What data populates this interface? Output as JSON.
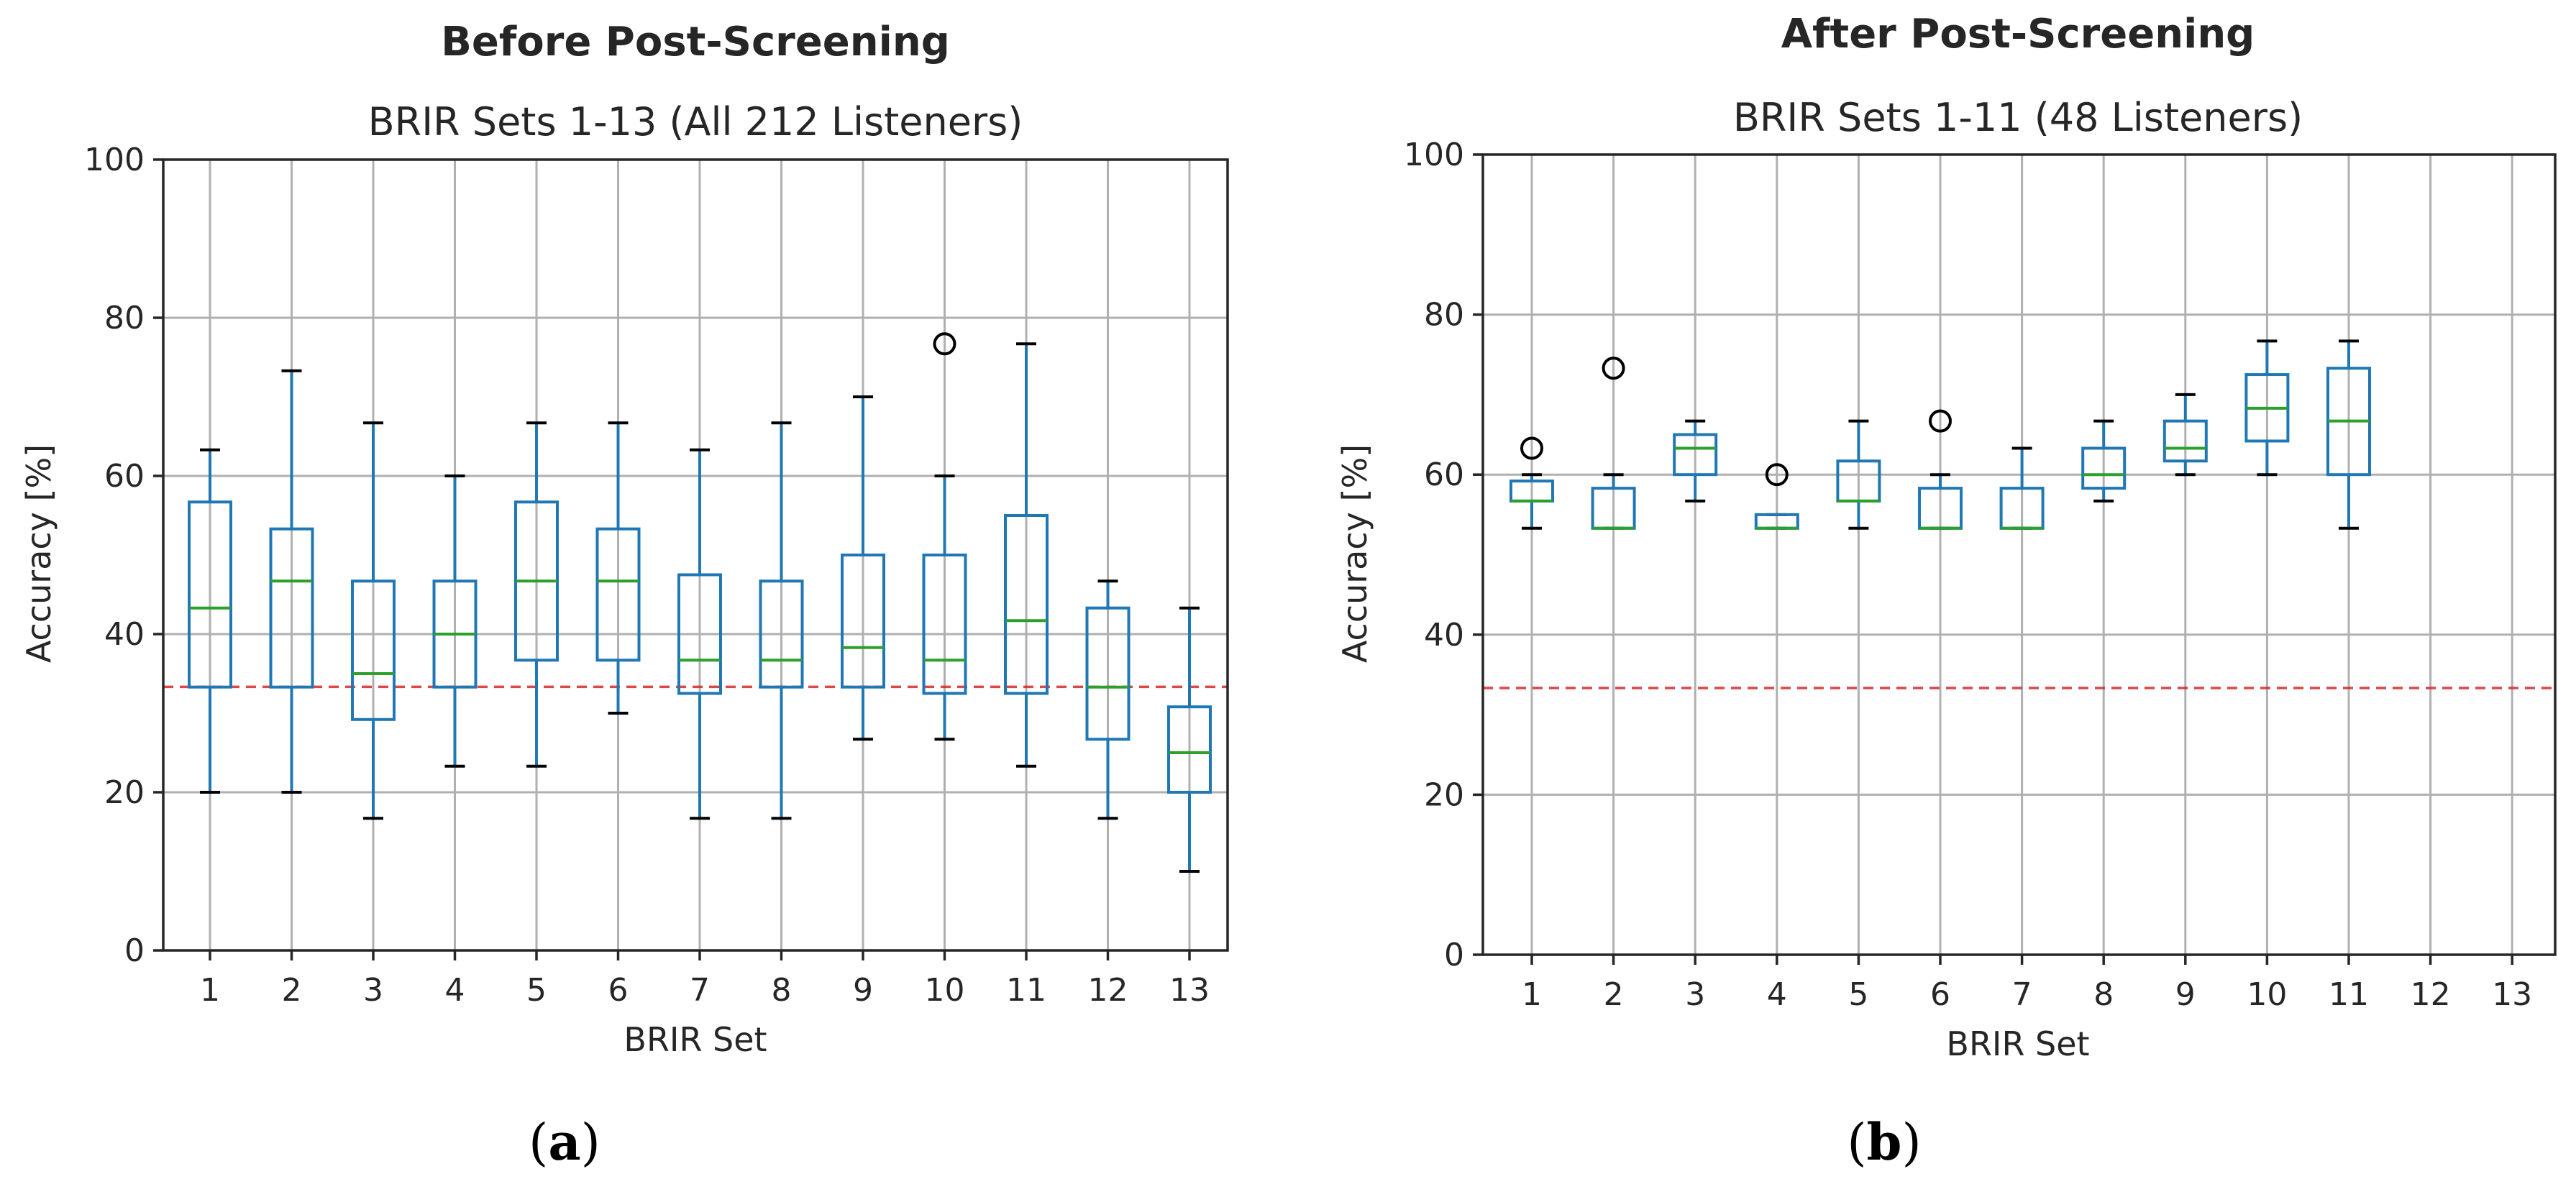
{
  "chart_data": [
    {
      "type": "box",
      "panel_label": "a",
      "title": "Before Post-Screening",
      "subtitle": "BRIR Sets 1-13 (All 212 Listeners)",
      "xlabel": "BRIR Set",
      "ylabel": "Accuracy [%]",
      "ylim": [
        0,
        100
      ],
      "yticks": [
        0,
        20,
        40,
        60,
        80,
        100
      ],
      "grid": true,
      "chance_level": 33.33,
      "categories": [
        "1",
        "2",
        "3",
        "4",
        "5",
        "6",
        "7",
        "8",
        "9",
        "10",
        "11",
        "12",
        "13"
      ],
      "boxes": [
        {
          "whislo": 20,
          "q1": 33.3,
          "med": 43.3,
          "q3": 56.7,
          "whishi": 63.3,
          "fliers": []
        },
        {
          "whislo": 20,
          "q1": 33.3,
          "med": 46.7,
          "q3": 53.3,
          "whishi": 73.3,
          "fliers": []
        },
        {
          "whislo": 16.7,
          "q1": 29.2,
          "med": 35.0,
          "q3": 46.7,
          "whishi": 66.7,
          "fliers": []
        },
        {
          "whislo": 23.3,
          "q1": 33.3,
          "med": 40.0,
          "q3": 46.7,
          "whishi": 60.0,
          "fliers": []
        },
        {
          "whislo": 23.3,
          "q1": 36.7,
          "med": 46.7,
          "q3": 56.7,
          "whishi": 66.7,
          "fliers": []
        },
        {
          "whislo": 30.0,
          "q1": 36.7,
          "med": 46.7,
          "q3": 53.3,
          "whishi": 66.7,
          "fliers": []
        },
        {
          "whislo": 16.7,
          "q1": 32.5,
          "med": 36.7,
          "q3": 47.5,
          "whishi": 63.3,
          "fliers": []
        },
        {
          "whislo": 16.7,
          "q1": 33.3,
          "med": 36.7,
          "q3": 46.7,
          "whishi": 66.7,
          "fliers": []
        },
        {
          "whislo": 26.7,
          "q1": 33.3,
          "med": 38.3,
          "q3": 50.0,
          "whishi": 70.0,
          "fliers": []
        },
        {
          "whislo": 26.7,
          "q1": 32.5,
          "med": 36.7,
          "q3": 50.0,
          "whishi": 60.0,
          "fliers": [
            76.7
          ]
        },
        {
          "whislo": 23.3,
          "q1": 32.5,
          "med": 41.7,
          "q3": 55.0,
          "whishi": 76.7,
          "fliers": []
        },
        {
          "whislo": 16.7,
          "q1": 26.7,
          "med": 33.3,
          "q3": 43.3,
          "whishi": 46.7,
          "fliers": []
        },
        {
          "whislo": 10.0,
          "q1": 20.0,
          "med": 25.0,
          "q3": 30.8,
          "whishi": 43.3,
          "fliers": []
        }
      ]
    },
    {
      "type": "box",
      "panel_label": "b",
      "title": "After Post-Screening",
      "subtitle": "BRIR Sets 1-11 (48 Listeners)",
      "xlabel": "BRIR Set",
      "ylabel": "Accuracy [%]",
      "ylim": [
        0,
        100
      ],
      "yticks": [
        0,
        20,
        40,
        60,
        80,
        100
      ],
      "grid": true,
      "chance_level": 33.33,
      "categories": [
        "1",
        "2",
        "3",
        "4",
        "5",
        "6",
        "7",
        "8",
        "9",
        "10",
        "11",
        "12",
        "13"
      ],
      "boxes": [
        {
          "whislo": 53.3,
          "q1": 56.7,
          "med": 56.7,
          "q3": 59.2,
          "whishi": 60.0,
          "fliers": [
            63.3
          ]
        },
        {
          "whislo": 53.3,
          "q1": 53.3,
          "med": 53.3,
          "q3": 58.3,
          "whishi": 60.0,
          "fliers": [
            73.3
          ]
        },
        {
          "whislo": 56.7,
          "q1": 60.0,
          "med": 63.3,
          "q3": 65.0,
          "whishi": 66.7,
          "fliers": []
        },
        {
          "whislo": 53.3,
          "q1": 53.3,
          "med": 53.3,
          "q3": 55.0,
          "whishi": 55.0,
          "fliers": [
            60.0
          ]
        },
        {
          "whislo": 53.3,
          "q1": 56.7,
          "med": 56.7,
          "q3": 61.7,
          "whishi": 66.7,
          "fliers": []
        },
        {
          "whislo": 53.3,
          "q1": 53.3,
          "med": 53.3,
          "q3": 58.3,
          "whishi": 60.0,
          "fliers": [
            66.7
          ]
        },
        {
          "whislo": 53.3,
          "q1": 53.3,
          "med": 53.3,
          "q3": 58.3,
          "whishi": 63.3,
          "fliers": []
        },
        {
          "whislo": 56.7,
          "q1": 58.3,
          "med": 60.0,
          "q3": 63.3,
          "whishi": 66.7,
          "fliers": []
        },
        {
          "whislo": 60.0,
          "q1": 61.7,
          "med": 63.3,
          "q3": 66.7,
          "whishi": 70.0,
          "fliers": []
        },
        {
          "whislo": 60.0,
          "q1": 64.2,
          "med": 68.3,
          "q3": 72.5,
          "whishi": 76.7,
          "fliers": []
        },
        {
          "whislo": 53.3,
          "q1": 60.0,
          "med": 66.7,
          "q3": 73.3,
          "whishi": 76.7,
          "fliers": []
        },
        null,
        null
      ]
    }
  ],
  "captions": [
    {
      "open": "(",
      "label": "a",
      "close": ")"
    },
    {
      "open": "(",
      "label": "b",
      "close": ")"
    }
  ]
}
